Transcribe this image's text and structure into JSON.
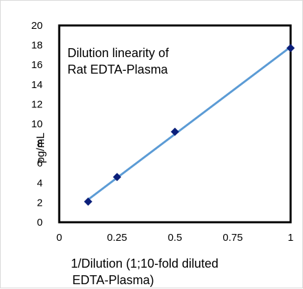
{
  "chart_data": {
    "type": "scatter",
    "title": "",
    "annotation": [
      "Dilution linearity of",
      "Rat EDTA-Plasma"
    ],
    "xlabel": [
      "1/Dilution (1;10-fold diluted",
      "EDTA-Plasma)"
    ],
    "ylabel": "pg/mL",
    "xlim": [
      0,
      1
    ],
    "ylim": [
      0,
      20
    ],
    "x_ticks": [
      0,
      0.25,
      0.5,
      0.75,
      1
    ],
    "x_tick_labels": [
      "0",
      "0.25",
      "0.5",
      "0.75",
      "1"
    ],
    "y_ticks": [
      0,
      2,
      4,
      6,
      8,
      10,
      12,
      14,
      16,
      18,
      20
    ],
    "y_tick_labels": [
      "0",
      "2",
      "4",
      "6",
      "8",
      "10",
      "12",
      "14",
      "16",
      "18",
      "20"
    ],
    "grid": false,
    "legend": "none",
    "series": [
      {
        "x": [
          0.125,
          0.25,
          0.5,
          1
        ],
        "y": [
          2.1,
          4.6,
          9.2,
          17.7
        ],
        "marker": "diamond",
        "marker_color": "#0b1f7a",
        "trendline": "linear",
        "trendline_color": "#5b9bd5"
      }
    ]
  }
}
